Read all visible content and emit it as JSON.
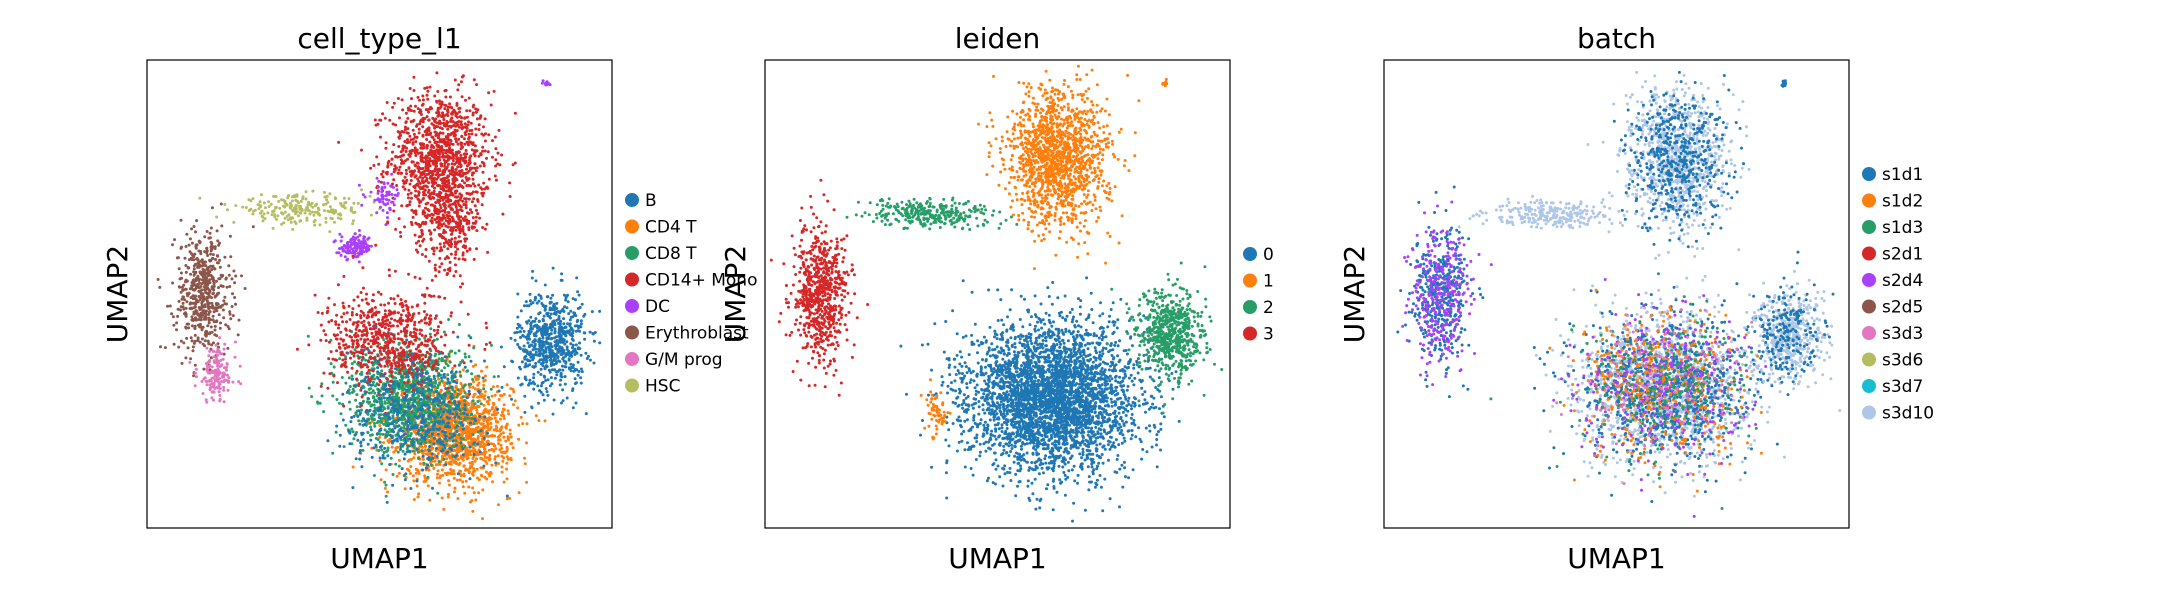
{
  "chart_data": [
    {
      "type": "scatter",
      "title": "cell_type_l1",
      "xlabel": "UMAP1",
      "ylabel": "UMAP2",
      "grid": false,
      "ticks": false,
      "legend_placement": "right",
      "xlim": [
        0,
        10
      ],
      "ylim": [
        0,
        10
      ],
      "legend": [
        {
          "label": "B",
          "color": "#1f77b4"
        },
        {
          "label": "CD4 T",
          "color": "#ff7f0e"
        },
        {
          "label": "CD8 T",
          "color": "#279e68"
        },
        {
          "label": "CD14+ Mono",
          "color": "#d62728"
        },
        {
          "label": "DC",
          "color": "#aa40fc"
        },
        {
          "label": "Erythroblast",
          "color": "#8c564b"
        },
        {
          "label": "G/M prog",
          "color": "#e377c2"
        },
        {
          "label": "HSC",
          "color": "#b5bd61"
        }
      ],
      "clusters": [
        {
          "category": "CD14+ Mono",
          "cx": 6.3,
          "cy": 7.9,
          "sx": 0.9,
          "sy": 1.2,
          "n": 1100
        },
        {
          "category": "CD14+ Mono",
          "cx": 6.5,
          "cy": 6.5,
          "sx": 0.6,
          "sy": 0.8,
          "n": 300
        },
        {
          "category": "B",
          "cx": 8.7,
          "cy": 4.0,
          "sx": 0.6,
          "sy": 0.9,
          "n": 650
        },
        {
          "category": "Erythroblast",
          "cx": 1.2,
          "cy": 5.0,
          "sx": 0.5,
          "sy": 1.1,
          "n": 550
        },
        {
          "category": "G/M prog",
          "cx": 1.5,
          "cy": 3.3,
          "sx": 0.35,
          "sy": 0.5,
          "n": 150
        },
        {
          "category": "HSC",
          "cx": 3.3,
          "cy": 6.8,
          "sx": 1.2,
          "sy": 0.25,
          "n": 220
        },
        {
          "category": "DC",
          "cx": 4.5,
          "cy": 6.0,
          "sx": 0.3,
          "sy": 0.2,
          "n": 130
        },
        {
          "category": "DC",
          "cx": 5.1,
          "cy": 7.1,
          "sx": 0.3,
          "sy": 0.3,
          "n": 60
        },
        {
          "category": "CD4 T",
          "cx": 6.6,
          "cy": 2.1,
          "sx": 1.0,
          "sy": 0.9,
          "n": 1500
        },
        {
          "category": "CD8 T",
          "cx": 5.6,
          "cy": 2.8,
          "sx": 1.1,
          "sy": 1.0,
          "n": 1100
        },
        {
          "category": "CD14+ Mono",
          "cx": 5.2,
          "cy": 4.0,
          "sx": 1.1,
          "sy": 0.9,
          "n": 700
        },
        {
          "category": "B",
          "cx": 5.8,
          "cy": 2.4,
          "sx": 1.2,
          "sy": 1.0,
          "n": 500
        },
        {
          "category": "DC",
          "cx": 8.6,
          "cy": 9.5,
          "sx": 0.05,
          "sy": 0.05,
          "n": 12
        }
      ]
    },
    {
      "type": "scatter",
      "title": "leiden",
      "xlabel": "UMAP1",
      "ylabel": "UMAP2",
      "grid": false,
      "ticks": false,
      "legend_placement": "right",
      "xlim": [
        0,
        10
      ],
      "ylim": [
        0,
        10
      ],
      "legend": [
        {
          "label": "0",
          "color": "#1f77b4"
        },
        {
          "label": "1",
          "color": "#ff7f0e"
        },
        {
          "label": "2",
          "color": "#279e68"
        },
        {
          "label": "3",
          "color": "#d62728"
        }
      ],
      "clusters": [
        {
          "category": "1",
          "cx": 6.3,
          "cy": 7.9,
          "sx": 0.9,
          "sy": 1.2,
          "n": 1400
        },
        {
          "category": "0",
          "cx": 6.2,
          "cy": 2.8,
          "sx": 1.5,
          "sy": 1.3,
          "n": 3600
        },
        {
          "category": "2",
          "cx": 8.7,
          "cy": 4.1,
          "sx": 0.6,
          "sy": 0.8,
          "n": 650
        },
        {
          "category": "3",
          "cx": 1.2,
          "cy": 5.0,
          "sx": 0.5,
          "sy": 1.2,
          "n": 700
        },
        {
          "category": "2",
          "cx": 3.6,
          "cy": 6.7,
          "sx": 1.1,
          "sy": 0.25,
          "n": 300
        },
        {
          "category": "1",
          "cx": 3.7,
          "cy": 2.5,
          "sx": 0.2,
          "sy": 0.4,
          "n": 60
        },
        {
          "category": "1",
          "cx": 8.6,
          "cy": 9.5,
          "sx": 0.05,
          "sy": 0.05,
          "n": 12
        }
      ]
    },
    {
      "type": "scatter",
      "title": "batch",
      "xlabel": "UMAP1",
      "ylabel": "UMAP2",
      "grid": false,
      "ticks": false,
      "legend_placement": "right",
      "xlim": [
        0,
        10
      ],
      "ylim": [
        0,
        10
      ],
      "legend": [
        {
          "label": "s1d1",
          "color": "#1f77b4"
        },
        {
          "label": "s1d2",
          "color": "#ff7f0e"
        },
        {
          "label": "s1d3",
          "color": "#279e68"
        },
        {
          "label": "s2d1",
          "color": "#d62728"
        },
        {
          "label": "s2d4",
          "color": "#aa40fc"
        },
        {
          "label": "s2d5",
          "color": "#8c564b"
        },
        {
          "label": "s3d3",
          "color": "#e377c2"
        },
        {
          "label": "s3d6",
          "color": "#b5bd61"
        },
        {
          "label": "s3d7",
          "color": "#17becf"
        },
        {
          "label": "s3d10",
          "color": "#aec7e8"
        }
      ],
      "clusters": [
        {
          "category": "s3d10",
          "cx": 6.3,
          "cy": 7.9,
          "sx": 0.9,
          "sy": 1.2,
          "n": 900
        },
        {
          "category": "s1d1",
          "cx": 6.3,
          "cy": 7.9,
          "sx": 0.9,
          "sy": 1.2,
          "n": 500
        },
        {
          "category": "s3d10",
          "cx": 6.0,
          "cy": 3.0,
          "sx": 1.5,
          "sy": 1.3,
          "n": 1400
        },
        {
          "category": "s1d1",
          "cx": 6.0,
          "cy": 3.0,
          "sx": 1.5,
          "sy": 1.3,
          "n": 900
        },
        {
          "category": "s1d2",
          "cx": 6.0,
          "cy": 3.0,
          "sx": 1.5,
          "sy": 1.3,
          "n": 450
        },
        {
          "category": "s2d4",
          "cx": 6.0,
          "cy": 3.0,
          "sx": 1.5,
          "sy": 1.3,
          "n": 300
        },
        {
          "category": "s1d3",
          "cx": 6.0,
          "cy": 3.0,
          "sx": 1.5,
          "sy": 1.3,
          "n": 250
        },
        {
          "category": "s3d3",
          "cx": 6.0,
          "cy": 3.0,
          "sx": 1.5,
          "sy": 1.3,
          "n": 120
        },
        {
          "category": "s3d10",
          "cx": 8.7,
          "cy": 4.1,
          "sx": 0.6,
          "sy": 0.8,
          "n": 450
        },
        {
          "category": "s1d1",
          "cx": 8.7,
          "cy": 4.1,
          "sx": 0.6,
          "sy": 0.8,
          "n": 200
        },
        {
          "category": "s1d1",
          "cx": 1.2,
          "cy": 5.0,
          "sx": 0.5,
          "sy": 1.2,
          "n": 400
        },
        {
          "category": "s2d4",
          "cx": 1.2,
          "cy": 5.0,
          "sx": 0.5,
          "sy": 1.2,
          "n": 300
        },
        {
          "category": "s3d10",
          "cx": 3.6,
          "cy": 6.7,
          "sx": 1.1,
          "sy": 0.25,
          "n": 250
        },
        {
          "category": "s1d1",
          "cx": 8.6,
          "cy": 9.5,
          "sx": 0.05,
          "sy": 0.05,
          "n": 12
        }
      ]
    }
  ]
}
